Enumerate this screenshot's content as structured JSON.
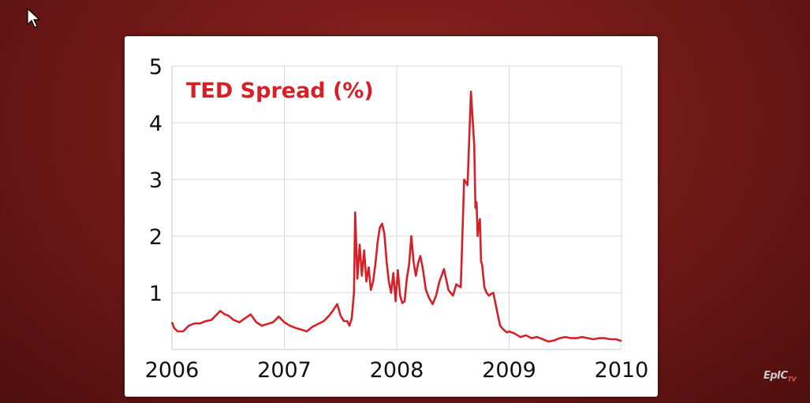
{
  "chart_data": {
    "type": "line",
    "title": "TED Spread (%)",
    "xlabel": "",
    "ylabel": "",
    "xlim": [
      2006,
      2010
    ],
    "ylim": [
      0,
      5
    ],
    "x_ticks": [
      "2006",
      "2007",
      "2008",
      "2009",
      "2010"
    ],
    "y_ticks": [
      "1",
      "2",
      "3",
      "4",
      "5"
    ],
    "grid": true,
    "colors": {
      "line": "#d62027",
      "title": "#d62027",
      "grid": "#d8d8d8"
    },
    "series": [
      {
        "name": "",
        "x": [
          2006.0,
          2006.02,
          2006.05,
          2006.1,
          2006.15,
          2006.2,
          2006.25,
          2006.3,
          2006.35,
          2006.4,
          2006.43,
          2006.47,
          2006.5,
          2006.55,
          2006.6,
          2006.65,
          2006.7,
          2006.75,
          2006.8,
          2006.85,
          2006.9,
          2006.95,
          2007.0,
          2007.05,
          2007.1,
          2007.15,
          2007.2,
          2007.25,
          2007.3,
          2007.35,
          2007.4,
          2007.43,
          2007.47,
          2007.5,
          2007.53,
          2007.56,
          2007.58,
          2007.6,
          2007.62,
          2007.63,
          2007.65,
          2007.67,
          2007.69,
          2007.71,
          2007.73,
          2007.75,
          2007.77,
          2007.79,
          2007.81,
          2007.83,
          2007.85,
          2007.87,
          2007.89,
          2007.91,
          2007.93,
          2007.95,
          2007.97,
          2007.99,
          2008.01,
          2008.03,
          2008.05,
          2008.07,
          2008.09,
          2008.11,
          2008.13,
          2008.15,
          2008.17,
          2008.19,
          2008.21,
          2008.23,
          2008.26,
          2008.29,
          2008.32,
          2008.35,
          2008.38,
          2008.42,
          2008.46,
          2008.5,
          2008.53,
          2008.55,
          2008.57,
          2008.6,
          2008.63,
          2008.66,
          2008.69,
          2008.7,
          2008.71,
          2008.72,
          2008.73,
          2008.74,
          2008.75,
          2008.76,
          2008.77,
          2008.78,
          2008.79,
          2008.8,
          2008.82,
          2008.84,
          2008.86,
          2008.88,
          2008.9,
          2008.92,
          2008.95,
          2008.98,
          2009.0,
          2009.05,
          2009.1,
          2009.15,
          2009.2,
          2009.25,
          2009.3,
          2009.35,
          2009.4,
          2009.45,
          2009.5,
          2009.55,
          2009.6,
          2009.65,
          2009.7,
          2009.75,
          2009.8,
          2009.85,
          2009.9,
          2009.95,
          2010.0
        ],
        "y": [
          0.48,
          0.38,
          0.32,
          0.32,
          0.42,
          0.46,
          0.46,
          0.5,
          0.52,
          0.62,
          0.68,
          0.62,
          0.6,
          0.52,
          0.48,
          0.55,
          0.62,
          0.48,
          0.42,
          0.45,
          0.48,
          0.58,
          0.48,
          0.42,
          0.38,
          0.35,
          0.32,
          0.4,
          0.45,
          0.5,
          0.6,
          0.68,
          0.8,
          0.6,
          0.5,
          0.5,
          0.42,
          0.55,
          1.0,
          2.42,
          1.25,
          1.85,
          1.3,
          1.75,
          1.2,
          1.45,
          1.05,
          1.2,
          1.5,
          1.9,
          2.15,
          2.22,
          2.05,
          1.55,
          1.2,
          1.0,
          1.35,
          0.85,
          1.4,
          0.95,
          0.82,
          0.85,
          1.25,
          1.5,
          2.0,
          1.55,
          1.3,
          1.52,
          1.65,
          1.45,
          1.05,
          0.9,
          0.8,
          0.95,
          1.2,
          1.42,
          1.05,
          0.95,
          1.15,
          1.12,
          1.1,
          3.0,
          2.9,
          4.55,
          3.6,
          2.5,
          2.6,
          2.0,
          2.2,
          2.3,
          1.55,
          1.5,
          1.3,
          1.1,
          1.05,
          1.0,
          0.95,
          0.98,
          1.0,
          0.8,
          0.6,
          0.42,
          0.35,
          0.3,
          0.32,
          0.28,
          0.22,
          0.25,
          0.2,
          0.22,
          0.18,
          0.14,
          0.16,
          0.2,
          0.22,
          0.2,
          0.2,
          0.22,
          0.2,
          0.18,
          0.2,
          0.2,
          0.18,
          0.18,
          0.15
        ]
      }
    ]
  },
  "watermark": {
    "brand": "EpIC",
    "suffix": "TV"
  }
}
